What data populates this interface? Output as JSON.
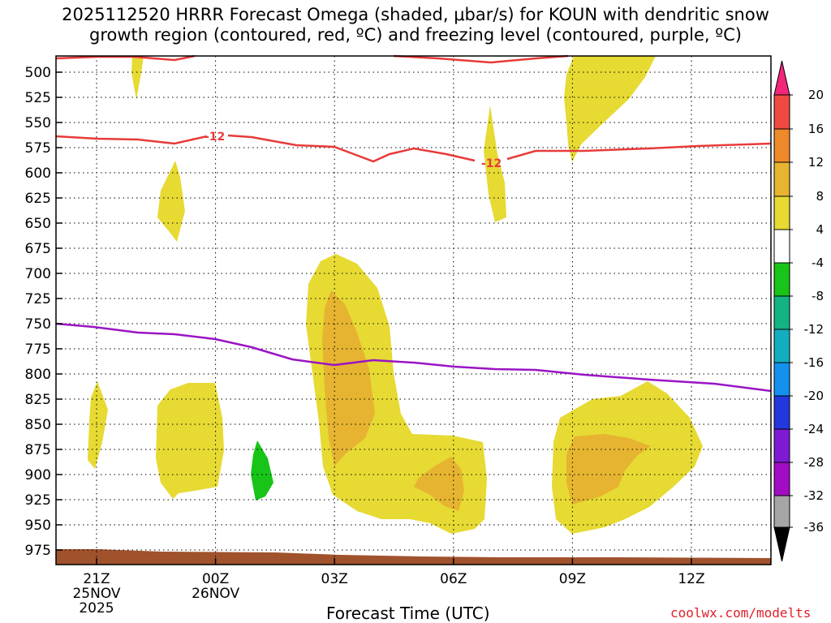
{
  "chart_data": {
    "type": "contour",
    "title_line1": "2025112520 HRRR Forecast Omega (shaded, μbar/s) for KOUN with dendritic snow",
    "title_line2": "growth region (contoured, red, ºC) and freezing level (contoured, purple, ºC)",
    "xlabel": "Forecast Time (UTC)",
    "credit": "coolwx.com/modelts",
    "y_axis": {
      "unit": "hPa",
      "ticks": [
        "500",
        "525",
        "550",
        "575",
        "600",
        "625",
        "650",
        "675",
        "700",
        "725",
        "750",
        "775",
        "800",
        "825",
        "850",
        "875",
        "900",
        "925",
        "950",
        "975"
      ]
    },
    "x_axis": {
      "ticks": [
        {
          "hour": 21,
          "label": "21Z",
          "date1": "25NOV",
          "date2": "2025"
        },
        {
          "hour": 24,
          "label": "00Z",
          "date1": "26NOV",
          "date2": ""
        },
        {
          "hour": 27,
          "label": "03Z",
          "date1": "",
          "date2": ""
        },
        {
          "hour": 30,
          "label": "06Z",
          "date1": "",
          "date2": ""
        },
        {
          "hour": 33,
          "label": "09Z",
          "date1": "",
          "date2": ""
        },
        {
          "hour": 36,
          "label": "12Z",
          "date1": "",
          "date2": ""
        }
      ],
      "range_hours": [
        20,
        38
      ]
    },
    "colorbar": {
      "labels": [
        "20",
        "16",
        "12",
        "8",
        "4",
        "-4",
        "-8",
        "-12",
        "-16",
        "-20",
        "-24",
        "-28",
        "-32",
        "-36"
      ],
      "colors": [
        "#f2267a",
        "#f04a40",
        "#ee8a2a",
        "#e6b430",
        "#e6da33",
        "#ffffff",
        "#18c418",
        "#13b384",
        "#12aec0",
        "#1490ee",
        "#2238dc",
        "#7f1ad4",
        "#a20cc4",
        "#a6a6a6",
        "#000000"
      ]
    },
    "contour_labels": [
      "-12",
      "-12"
    ]
  }
}
